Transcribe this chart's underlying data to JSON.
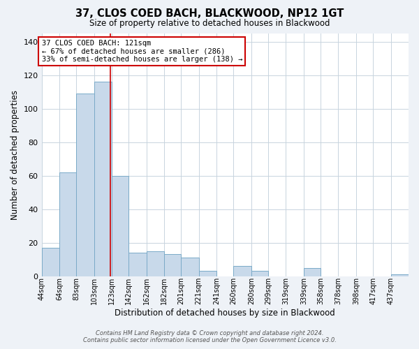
{
  "title": "37, CLOS COED BACH, BLACKWOOD, NP12 1GT",
  "subtitle": "Size of property relative to detached houses in Blackwood",
  "xlabel": "Distribution of detached houses by size in Blackwood",
  "ylabel": "Number of detached properties",
  "bar_color": "#c8d9ea",
  "bar_edge_color": "#7aaac8",
  "bin_labels": [
    "44sqm",
    "64sqm",
    "83sqm",
    "103sqm",
    "123sqm",
    "142sqm",
    "162sqm",
    "182sqm",
    "201sqm",
    "221sqm",
    "241sqm",
    "260sqm",
    "280sqm",
    "299sqm",
    "319sqm",
    "339sqm",
    "358sqm",
    "378sqm",
    "398sqm",
    "417sqm",
    "437sqm"
  ],
  "bin_edges": [
    44,
    64,
    83,
    103,
    123,
    142,
    162,
    182,
    201,
    221,
    241,
    260,
    280,
    299,
    319,
    339,
    358,
    378,
    398,
    417,
    437,
    457
  ],
  "bar_heights": [
    17,
    62,
    109,
    116,
    60,
    14,
    15,
    13,
    11,
    3,
    0,
    6,
    3,
    0,
    0,
    5,
    0,
    0,
    0,
    0,
    1
  ],
  "property_size": 121,
  "vline_color": "#cc0000",
  "ylim": [
    0,
    145
  ],
  "yticks": [
    0,
    20,
    40,
    60,
    80,
    100,
    120,
    140
  ],
  "annotation_title": "37 CLOS COED BACH: 121sqm",
  "annotation_line1": "← 67% of detached houses are smaller (286)",
  "annotation_line2": "33% of semi-detached houses are larger (138) →",
  "annotation_box_color": "#ffffff",
  "annotation_box_edge": "#cc0000",
  "footer_line1": "Contains HM Land Registry data © Crown copyright and database right 2024.",
  "footer_line2": "Contains public sector information licensed under the Open Government Licence v3.0.",
  "background_color": "#eef2f7",
  "plot_bg_color": "#ffffff"
}
